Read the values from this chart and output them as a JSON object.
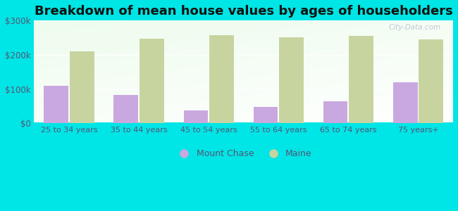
{
  "title": "Breakdown of mean house values by ages of householders",
  "categories": [
    "25 to 34 years",
    "35 to 44 years",
    "45 to 54 years",
    "55 to 64 years",
    "65 to 74 years",
    "75 years+"
  ],
  "mount_chase": [
    110000,
    82000,
    37000,
    47000,
    65000,
    120000
  ],
  "maine": [
    210000,
    248000,
    258000,
    252000,
    255000,
    245000
  ],
  "mount_chase_color": "#c9a8e0",
  "maine_color": "#c8d4a0",
  "ylim": [
    0,
    300000
  ],
  "yticks": [
    0,
    100000,
    200000,
    300000
  ],
  "ytick_labels": [
    "$0",
    "$100k",
    "$200k",
    "$300k"
  ],
  "background_color": "#00e5e5",
  "title_fontsize": 13,
  "bar_width": 0.35,
  "legend_labels": [
    "Mount Chase",
    "Maine"
  ],
  "watermark": "City-Data.com",
  "tick_label_color": "#555577",
  "grid_color": "#cccccc"
}
